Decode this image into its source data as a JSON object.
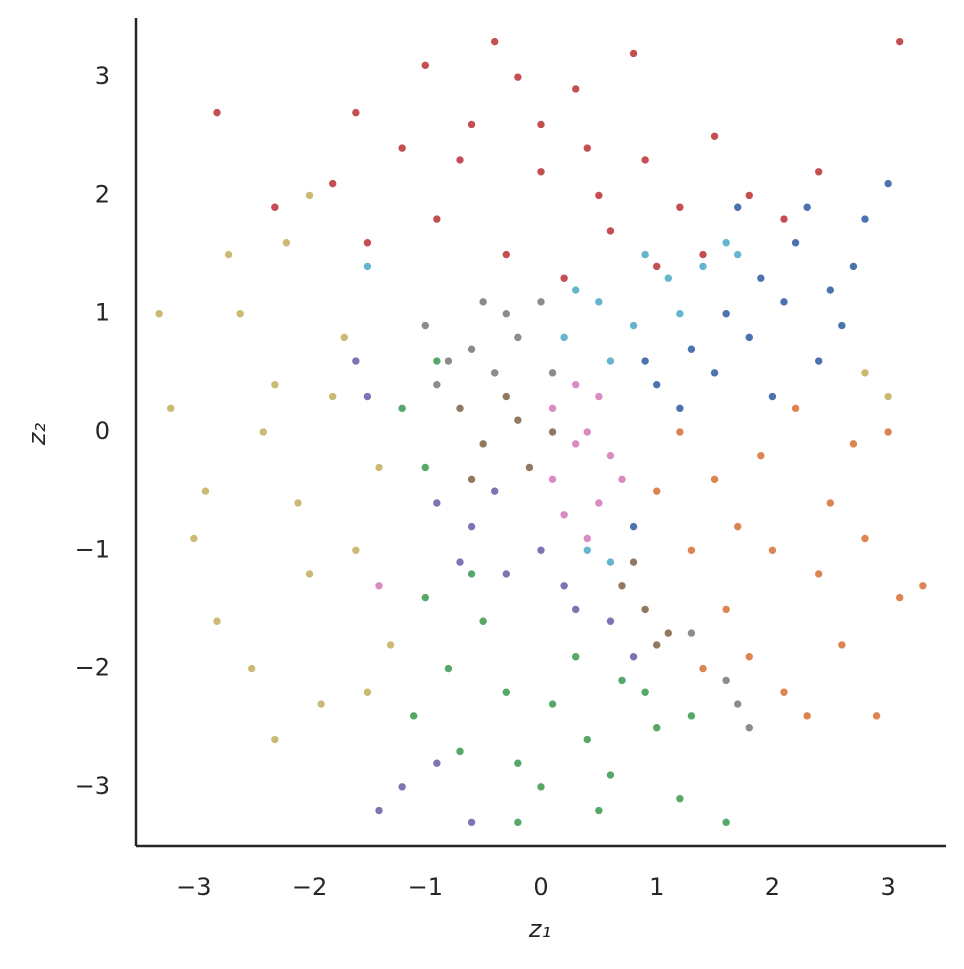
{
  "chart_data": {
    "type": "scatter",
    "xlabel": "z₁",
    "ylabel": "z₂",
    "xlim": [
      -3.5,
      3.5
    ],
    "ylim": [
      -3.5,
      3.5
    ],
    "xticks": [
      {
        "value": -3,
        "label": "−3"
      },
      {
        "value": -2,
        "label": "−2"
      },
      {
        "value": -1,
        "label": "−1"
      },
      0,
      1,
      2,
      3
    ],
    "yticks": [
      {
        "value": -3,
        "label": "−3"
      },
      {
        "value": -2,
        "label": "−2"
      },
      {
        "value": -1,
        "label": "−1"
      },
      0,
      1,
      2,
      3
    ],
    "grid": false,
    "series": [
      {
        "color": "#ccb974",
        "x": [
          -3.2,
          -2.9,
          -2.6,
          -2.3,
          -2.0,
          -1.7,
          -1.4,
          -2.8,
          -2.5,
          -2.2,
          -1.9,
          -1.6,
          -1.3,
          -3.0,
          -2.4,
          -2.1,
          -1.8,
          -2.7,
          -2.3,
          -1.5,
          -3.3,
          -2.0,
          2.8,
          3.0
        ],
        "y": [
          0.2,
          -0.5,
          1.0,
          0.4,
          -1.2,
          0.8,
          -0.3,
          -1.6,
          -2.0,
          1.6,
          -2.3,
          -1.0,
          -1.8,
          -0.9,
          0.0,
          -0.6,
          0.3,
          1.5,
          -2.6,
          -2.2,
          1.0,
          2.0,
          0.5,
          0.3
        ]
      },
      {
        "color": "#c44e52",
        "x": [
          -2.3,
          -1.8,
          -1.5,
          -1.2,
          -0.9,
          -0.6,
          -0.3,
          0,
          0.3,
          0.6,
          0.9,
          1.2,
          1.5,
          1.8,
          2.1,
          -1.0,
          -0.4,
          0.2,
          0.8,
          1.4,
          -1.6,
          0.0,
          0.5,
          -0.7,
          1.0,
          2.4,
          -2.8,
          3.1,
          -0.2,
          0.4
        ],
        "y": [
          1.9,
          2.1,
          1.6,
          2.4,
          1.8,
          2.6,
          1.5,
          2.2,
          2.9,
          1.7,
          2.3,
          1.9,
          2.5,
          2.0,
          1.8,
          3.1,
          3.3,
          1.3,
          3.2,
          1.5,
          2.7,
          2.6,
          2.0,
          2.3,
          1.4,
          2.2,
          2.7,
          3.3,
          3.0,
          2.4
        ]
      },
      {
        "color": "#4c72b0",
        "x": [
          1.0,
          1.3,
          1.6,
          1.9,
          2.2,
          2.5,
          2.8,
          1.2,
          1.5,
          1.8,
          2.1,
          2.4,
          2.7,
          3.0,
          0.9,
          1.7,
          2.0,
          2.3,
          2.6,
          0.8
        ],
        "y": [
          0.4,
          0.7,
          1.0,
          1.3,
          1.6,
          1.2,
          1.8,
          0.2,
          0.5,
          0.8,
          1.1,
          0.6,
          1.4,
          2.1,
          0.6,
          1.9,
          0.3,
          1.9,
          0.9,
          -0.8
        ]
      },
      {
        "color": "#dd8452",
        "x": [
          1.0,
          1.3,
          1.6,
          1.9,
          2.2,
          2.5,
          2.8,
          3.1,
          1.2,
          1.5,
          1.8,
          2.1,
          2.4,
          2.7,
          3.0,
          1.4,
          1.7,
          2.0,
          2.3,
          2.6,
          3.3,
          2.9
        ],
        "y": [
          -0.5,
          -1.0,
          -1.5,
          -0.2,
          0.2,
          -0.6,
          -0.9,
          -1.4,
          0.0,
          -0.4,
          -1.9,
          -2.2,
          -1.2,
          -0.1,
          0.0,
          -2.0,
          -0.8,
          -1.0,
          -2.4,
          -1.8,
          -1.3,
          -2.4
        ]
      },
      {
        "color": "#55a868",
        "x": [
          -1.1,
          -0.8,
          -0.5,
          -0.2,
          0.1,
          0.4,
          0.7,
          1.0,
          1.3,
          -1.0,
          -0.6,
          -0.3,
          0.0,
          0.3,
          0.6,
          0.9,
          1.2,
          1.6,
          -0.7,
          -0.2,
          0.5,
          -1.2,
          -1.0,
          -0.9
        ],
        "y": [
          -2.4,
          -2.0,
          -1.6,
          -2.8,
          -2.3,
          -2.6,
          -2.1,
          -2.5,
          -2.4,
          -1.4,
          -1.2,
          -2.2,
          -3.0,
          -1.9,
          -2.9,
          -2.2,
          -3.1,
          -3.3,
          -2.7,
          -3.3,
          -3.2,
          0.2,
          -0.3,
          0.6
        ]
      },
      {
        "color": "#8172b3",
        "x": [
          -0.9,
          -0.6,
          -0.3,
          0.0,
          0.3,
          0.6,
          0.8,
          -0.7,
          -0.4,
          0.2,
          -1.4,
          -1.2,
          -0.9,
          -0.6,
          -1.6,
          -1.5
        ],
        "y": [
          -0.6,
          -0.8,
          -1.2,
          -1.0,
          -1.5,
          -1.6,
          -1.9,
          -1.1,
          -0.5,
          -1.3,
          -3.2,
          -3.0,
          -2.8,
          -3.3,
          0.6,
          0.3
        ]
      },
      {
        "color": "#8c8c8c",
        "x": [
          -1.0,
          -0.8,
          -0.5,
          -0.2,
          0.1,
          -0.9,
          -0.6,
          -0.3,
          0.0,
          -0.4,
          1.6,
          1.7,
          1.8,
          1.3
        ],
        "y": [
          0.9,
          0.6,
          1.1,
          0.8,
          0.5,
          0.4,
          0.7,
          1.0,
          1.1,
          0.5,
          -2.1,
          -2.3,
          -2.5,
          -1.7
        ]
      },
      {
        "color": "#937860",
        "x": [
          -0.7,
          -0.5,
          -0.3,
          -0.1,
          0.1,
          -0.6,
          -0.2,
          0.7,
          0.9,
          1.1,
          0.8,
          1.0
        ],
        "y": [
          0.2,
          -0.1,
          0.3,
          -0.3,
          0.0,
          -0.4,
          0.1,
          -1.3,
          -1.5,
          -1.7,
          -1.1,
          -1.8
        ]
      },
      {
        "color": "#da8bc3",
        "x": [
          0.1,
          0.3,
          0.5,
          0.7,
          0.2,
          0.4,
          0.6,
          0.1,
          0.3,
          0.5,
          -1.4,
          0.4
        ],
        "y": [
          0.2,
          -0.1,
          0.3,
          -0.4,
          -0.7,
          -0.9,
          -0.2,
          -0.4,
          0.4,
          -0.6,
          -1.3,
          0.0
        ]
      },
      {
        "color": "#64b5cd",
        "x": [
          0.2,
          0.5,
          0.8,
          1.1,
          1.4,
          1.7,
          0.3,
          0.6,
          0.9,
          1.2,
          1.6,
          -1.5,
          0.4,
          0.6
        ],
        "y": [
          0.8,
          1.1,
          0.9,
          1.3,
          1.4,
          1.5,
          1.2,
          0.6,
          1.5,
          1.0,
          1.6,
          1.4,
          -1.0,
          -1.1
        ]
      }
    ]
  }
}
